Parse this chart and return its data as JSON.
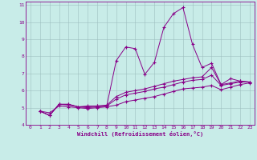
{
  "xlabel": "Windchill (Refroidissement éolien,°C)",
  "xlim": [
    -0.5,
    23.5
  ],
  "ylim": [
    4,
    11.2
  ],
  "yticks": [
    4,
    5,
    6,
    7,
    8,
    9,
    10,
    11
  ],
  "xticks": [
    0,
    1,
    2,
    3,
    4,
    5,
    6,
    7,
    8,
    9,
    10,
    11,
    12,
    13,
    14,
    15,
    16,
    17,
    18,
    19,
    20,
    21,
    22,
    23
  ],
  "bg_color": "#c8ece8",
  "line_color": "#880088",
  "grid_color": "#99bbbb",
  "lines": [
    {
      "x": [
        1,
        2,
        3,
        4,
        5,
        6,
        7,
        8,
        9,
        10,
        11,
        12,
        13,
        14,
        15,
        16,
        17,
        18,
        19,
        20,
        21,
        22,
        23
      ],
      "y": [
        4.8,
        4.55,
        5.2,
        5.2,
        5.05,
        5.05,
        5.1,
        5.1,
        7.75,
        8.55,
        8.45,
        6.95,
        7.65,
        9.7,
        10.5,
        10.85,
        8.7,
        7.35,
        7.6,
        6.35,
        6.7,
        6.55,
        6.5
      ]
    },
    {
      "x": [
        1,
        2,
        3,
        4,
        5,
        6,
        7,
        8,
        9,
        10,
        11,
        12,
        13,
        14,
        15,
        16,
        17,
        18,
        19,
        20,
        21,
        22,
        23
      ],
      "y": [
        4.8,
        4.55,
        5.2,
        5.2,
        5.05,
        5.1,
        5.1,
        5.15,
        5.65,
        5.9,
        6.0,
        6.1,
        6.25,
        6.4,
        6.55,
        6.65,
        6.75,
        6.8,
        7.35,
        6.35,
        6.45,
        6.55,
        6.5
      ]
    },
    {
      "x": [
        1,
        2,
        3,
        4,
        5,
        6,
        7,
        8,
        9,
        10,
        11,
        12,
        13,
        14,
        15,
        16,
        17,
        18,
        19,
        20,
        21,
        22,
        23
      ],
      "y": [
        4.8,
        4.55,
        5.2,
        5.15,
        5.05,
        5.0,
        5.05,
        5.1,
        5.5,
        5.75,
        5.85,
        5.95,
        6.1,
        6.2,
        6.35,
        6.5,
        6.6,
        6.65,
        6.9,
        6.3,
        6.4,
        6.5,
        6.5
      ]
    },
    {
      "x": [
        1,
        2,
        3,
        4,
        5,
        6,
        7,
        8,
        9,
        10,
        11,
        12,
        13,
        14,
        15,
        16,
        17,
        18,
        19,
        20,
        21,
        22,
        23
      ],
      "y": [
        4.8,
        4.7,
        5.1,
        5.05,
        5.0,
        4.95,
        5.0,
        5.05,
        5.15,
        5.35,
        5.45,
        5.55,
        5.65,
        5.8,
        5.95,
        6.1,
        6.15,
        6.2,
        6.3,
        6.05,
        6.2,
        6.35,
        6.45
      ]
    }
  ]
}
